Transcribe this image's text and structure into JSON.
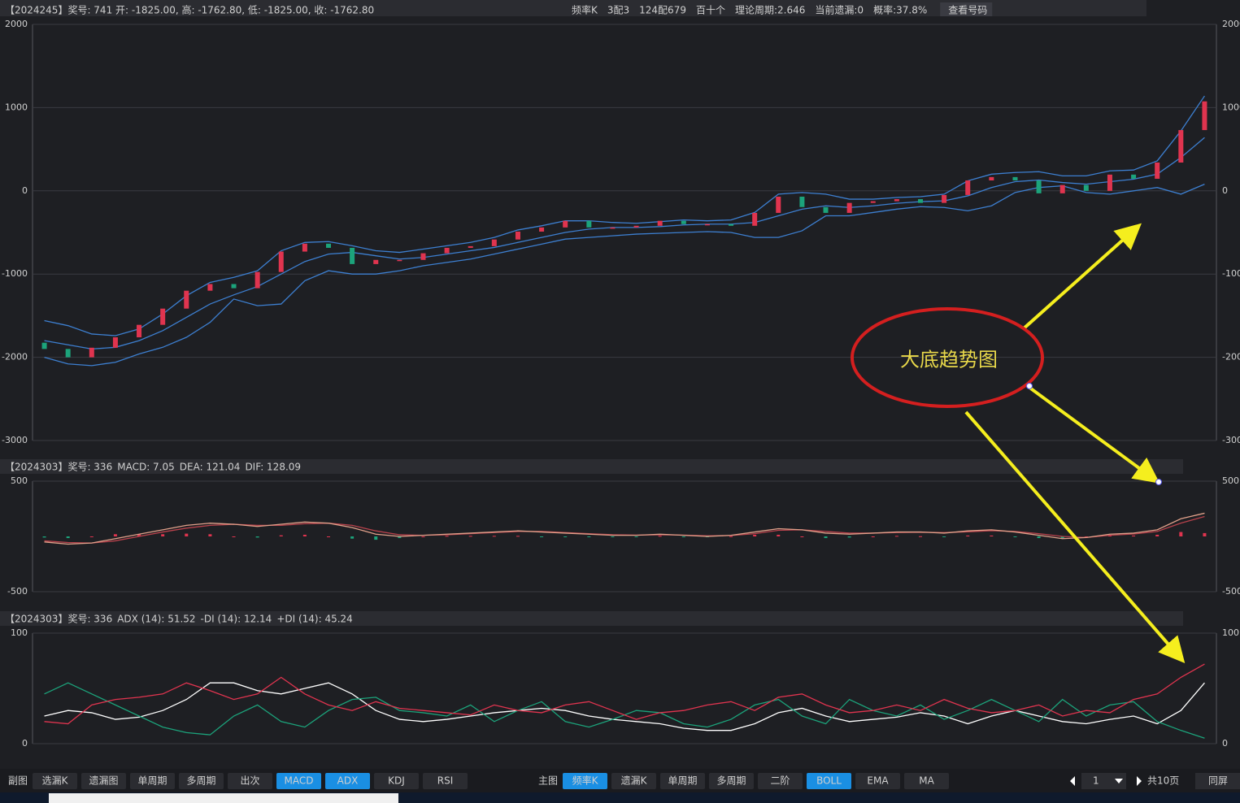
{
  "chart_data": [
    {
      "type": "candlestick",
      "title": "【2024245】奖号: 741   开: -1825.00, 高: -1762.80, 低: -1825.00, 收: -1762.80",
      "info": [
        "频率K",
        "3配3",
        "124配679",
        "百十个",
        "理论周期:2.646",
        "当前遗漏:0",
        "概率:37.8%",
        "查看号码"
      ],
      "up_color": "#e0344f",
      "down_color": "#1ca37b",
      "open": [
        -1825,
        -1900,
        -2000,
        -1885,
        -1760,
        -1610,
        -1415,
        -1200,
        -1120,
        -1170,
        -975,
        -730,
        -635,
        -685,
        -880,
        -830,
        -830,
        -750,
        -685,
        -665,
        -585,
        -490,
        -440,
        -360,
        -440,
        -440,
        -420,
        -360,
        -400,
        -400,
        -420,
        -265,
        -70,
        -195,
        -265,
        -145,
        -125,
        -100,
        -145,
        -50,
        125,
        165,
        125,
        -30,
        70,
        0,
        195,
        145,
        340,
        730
      ],
      "close": [
        -1900,
        -2000,
        -1885,
        -1760,
        -1610,
        -1415,
        -1200,
        -1120,
        -1170,
        -975,
        -730,
        -635,
        -685,
        -880,
        -830,
        -830,
        -750,
        -685,
        -665,
        -585,
        -490,
        -440,
        -360,
        -440,
        -440,
        -420,
        -360,
        -400,
        -400,
        -420,
        -265,
        -70,
        -195,
        -265,
        -145,
        -125,
        -100,
        -145,
        -50,
        125,
        165,
        125,
        -30,
        70,
        0,
        195,
        145,
        340,
        730,
        1075
      ],
      "series": [
        {
          "color": "#3d7fd0",
          "values": [
            -1560,
            -1620,
            -1720,
            -1740,
            -1660,
            -1480,
            -1260,
            -1100,
            -1040,
            -960,
            -720,
            -620,
            -610,
            -660,
            -720,
            -740,
            -700,
            -660,
            -620,
            -560,
            -470,
            -420,
            -360,
            -360,
            -380,
            -390,
            -370,
            -350,
            -360,
            -350,
            -260,
            -40,
            -20,
            -40,
            -100,
            -100,
            -80,
            -70,
            -40,
            120,
            200,
            220,
            230,
            180,
            180,
            240,
            250,
            360,
            720,
            1140
          ]
        },
        {
          "color": "#3d7fd0",
          "values": [
            -1800,
            -1850,
            -1900,
            -1880,
            -1800,
            -1680,
            -1520,
            -1360,
            -1250,
            -1150,
            -1000,
            -850,
            -760,
            -740,
            -780,
            -820,
            -800,
            -760,
            -720,
            -680,
            -620,
            -560,
            -500,
            -460,
            -440,
            -440,
            -430,
            -410,
            -400,
            -400,
            -380,
            -300,
            -220,
            -180,
            -200,
            -180,
            -150,
            -130,
            -120,
            -60,
            40,
            110,
            130,
            100,
            80,
            110,
            140,
            200,
            400,
            640
          ]
        },
        {
          "color": "#3d7fd0",
          "values": [
            -2000,
            -2080,
            -2100,
            -2060,
            -1960,
            -1880,
            -1760,
            -1580,
            -1300,
            -1380,
            -1360,
            -1080,
            -960,
            -1000,
            -1000,
            -960,
            -900,
            -860,
            -820,
            -760,
            -700,
            -640,
            -580,
            -560,
            -540,
            -520,
            -510,
            -500,
            -490,
            -500,
            -560,
            -560,
            -480,
            -300,
            -300,
            -260,
            -220,
            -190,
            -200,
            -240,
            -180,
            -20,
            40,
            60,
            -20,
            -40,
            0,
            40,
            -40,
            80
          ]
        }
      ],
      "ylim": [
        -3000,
        2000
      ],
      "yticks": [
        2000,
        1000,
        0,
        -1000,
        -2000,
        -3000
      ],
      "grid": true
    },
    {
      "type": "macd",
      "title": "【2024303】奖号: 336",
      "series": [
        {
          "name": "MACD: 7.05",
          "kind": "bar",
          "color": "#e0344f",
          "down_color": "#1ca37b",
          "values": [
            -10,
            -15,
            0,
            20,
            20,
            20,
            25,
            20,
            0,
            -10,
            10,
            15,
            0,
            -20,
            -30,
            -15,
            0,
            5,
            5,
            5,
            5,
            -5,
            -5,
            -5,
            -5,
            -2,
            5,
            -2,
            -5,
            2,
            15,
            15,
            0,
            -15,
            -10,
            0,
            5,
            2,
            -5,
            8,
            8,
            -5,
            -15,
            -20,
            0,
            10,
            8,
            15,
            40,
            30
          ]
        },
        {
          "name": "DEA: 121.04",
          "kind": "line",
          "color": "#b8424c",
          "values": [
            -40,
            -55,
            -60,
            -40,
            0,
            40,
            75,
            100,
            110,
            100,
            100,
            115,
            120,
            100,
            50,
            15,
            10,
            15,
            25,
            35,
            45,
            45,
            35,
            25,
            15,
            12,
            15,
            12,
            5,
            8,
            25,
            55,
            60,
            45,
            30,
            30,
            35,
            38,
            35,
            42,
            52,
            45,
            25,
            0,
            -10,
            10,
            22,
            45,
            120,
            180
          ]
        },
        {
          "name": "DIF: 128.09",
          "kind": "line",
          "color": "#e0a08a",
          "values": [
            -50,
            -70,
            -60,
            -20,
            20,
            60,
            100,
            120,
            110,
            90,
            110,
            130,
            120,
            80,
            20,
            0,
            10,
            20,
            30,
            40,
            50,
            40,
            30,
            20,
            10,
            10,
            20,
            10,
            0,
            10,
            40,
            70,
            60,
            30,
            20,
            30,
            40,
            40,
            30,
            50,
            60,
            40,
            10,
            -20,
            -10,
            20,
            30,
            60,
            160,
            210
          ]
        }
      ],
      "ylim": [
        -500,
        500
      ],
      "yticks": [
        500,
        -500
      ],
      "grid": true
    },
    {
      "type": "line",
      "title": "【2024303】奖号: 336",
      "series": [
        {
          "name": "ADX (14): 51.52",
          "color": "#ffffff",
          "values": [
            25,
            30,
            28,
            22,
            24,
            30,
            40,
            55,
            55,
            48,
            45,
            50,
            55,
            45,
            30,
            22,
            20,
            22,
            25,
            28,
            30,
            32,
            30,
            25,
            22,
            20,
            18,
            14,
            12,
            12,
            18,
            28,
            32,
            25,
            20,
            22,
            24,
            28,
            25,
            18,
            25,
            30,
            25,
            20,
            18,
            22,
            25,
            18,
            30,
            55
          ]
        },
        {
          "name": "-DI (14): 12.14",
          "color": "#1ca37b",
          "values": [
            45,
            55,
            45,
            35,
            25,
            15,
            10,
            8,
            25,
            35,
            20,
            15,
            30,
            40,
            42,
            30,
            28,
            25,
            35,
            20,
            30,
            38,
            20,
            15,
            22,
            30,
            28,
            18,
            15,
            22,
            35,
            40,
            25,
            18,
            40,
            30,
            25,
            35,
            22,
            30,
            40,
            30,
            20,
            40,
            25,
            35,
            38,
            20,
            12,
            5
          ]
        },
        {
          "name": "+DI (14): 45.24",
          "color": "#e0344f",
          "values": [
            20,
            18,
            35,
            40,
            42,
            45,
            55,
            48,
            40,
            45,
            60,
            45,
            35,
            30,
            38,
            32,
            30,
            28,
            26,
            35,
            30,
            28,
            35,
            38,
            30,
            22,
            28,
            30,
            35,
            38,
            30,
            42,
            45,
            35,
            28,
            30,
            35,
            30,
            40,
            32,
            28,
            30,
            35,
            25,
            30,
            28,
            40,
            45,
            60,
            72
          ]
        }
      ],
      "ylim": [
        0,
        100
      ],
      "yticks": [
        100,
        0
      ],
      "grid": true
    }
  ],
  "annotation": "大底趋势图",
  "toolbar": {
    "sub_label": "副图",
    "sub_buttons": [
      {
        "label": "选漏K",
        "active": false
      },
      {
        "label": "遗漏图",
        "active": false
      },
      {
        "label": "单周期",
        "active": false
      },
      {
        "label": "多周期",
        "active": false
      },
      {
        "label": "出次",
        "active": false
      },
      {
        "label": "MACD",
        "active": true
      },
      {
        "label": "ADX",
        "active": true
      },
      {
        "label": "KDJ",
        "active": false
      },
      {
        "label": "RSI",
        "active": false
      }
    ],
    "main_label": "主图",
    "main_buttons": [
      {
        "label": "频率K",
        "active": true
      },
      {
        "label": "遗漏K",
        "active": false
      },
      {
        "label": "单周期",
        "active": false
      },
      {
        "label": "多周期",
        "active": false
      },
      {
        "label": "二阶",
        "active": false
      },
      {
        "label": "BOLL",
        "active": true
      },
      {
        "label": "EMA",
        "active": false
      },
      {
        "label": "MA",
        "active": false
      }
    ],
    "page": "1",
    "pages": "共10页",
    "same_screen": "同屏"
  }
}
